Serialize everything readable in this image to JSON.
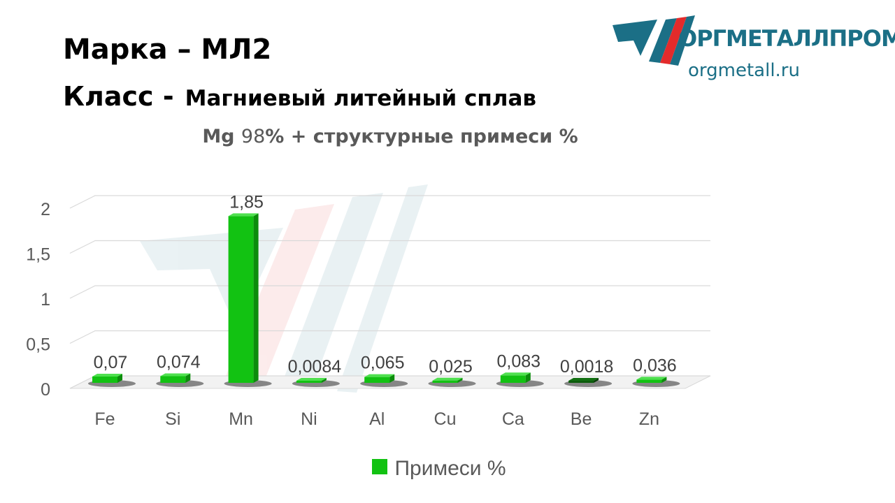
{
  "header": {
    "grade_line": "Марка  – МЛ2",
    "class_label": "Класс -",
    "class_value": "Магниевый литейный сплав"
  },
  "subtitle": {
    "base_element": "Mg",
    "base_percent": "98",
    "suffix": "% + структурные примеси %"
  },
  "logo": {
    "name": "ОРГМЕТАЛЛПРОМ",
    "url": "orgmetall.ru",
    "colors": {
      "teal": "#1b6f86",
      "red": "#e32b2b"
    }
  },
  "chart_data": {
    "type": "bar",
    "categories": [
      "Fe",
      "Si",
      "Mn",
      "Ni",
      "Al",
      "Cu",
      "Ca",
      "Be",
      "Zn"
    ],
    "series": [
      {
        "name": "Примеси %",
        "values": [
          0.07,
          0.074,
          1.85,
          0.0084,
          0.065,
          0.025,
          0.083,
          0.0018,
          0.036
        ]
      }
    ],
    "data_labels": [
      "0,07",
      "0,074",
      "1,85",
      "0,0084",
      "0,065",
      "0,025",
      "0,083",
      "0,0018",
      "0,036"
    ],
    "y_ticks": [
      {
        "value": 0,
        "label": "0"
      },
      {
        "value": 0.5,
        "label": "0,5"
      },
      {
        "value": 1,
        "label": "1"
      },
      {
        "value": 1.5,
        "label": "1,5"
      },
      {
        "value": 2,
        "label": "2"
      }
    ],
    "ylim": [
      0,
      2
    ],
    "grid": true,
    "legend_position": "bottom",
    "bar_color": "#12c212"
  }
}
